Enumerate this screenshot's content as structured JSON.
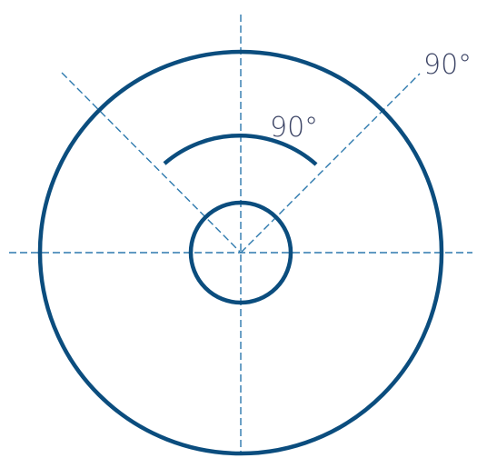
{
  "colors": {
    "circle_stroke": "#0b4d7e",
    "guide_line": "#2d79ad",
    "label_text": "#3d4566"
  },
  "labels": {
    "inner_angle": "90°",
    "outer_angle": "90°"
  }
}
